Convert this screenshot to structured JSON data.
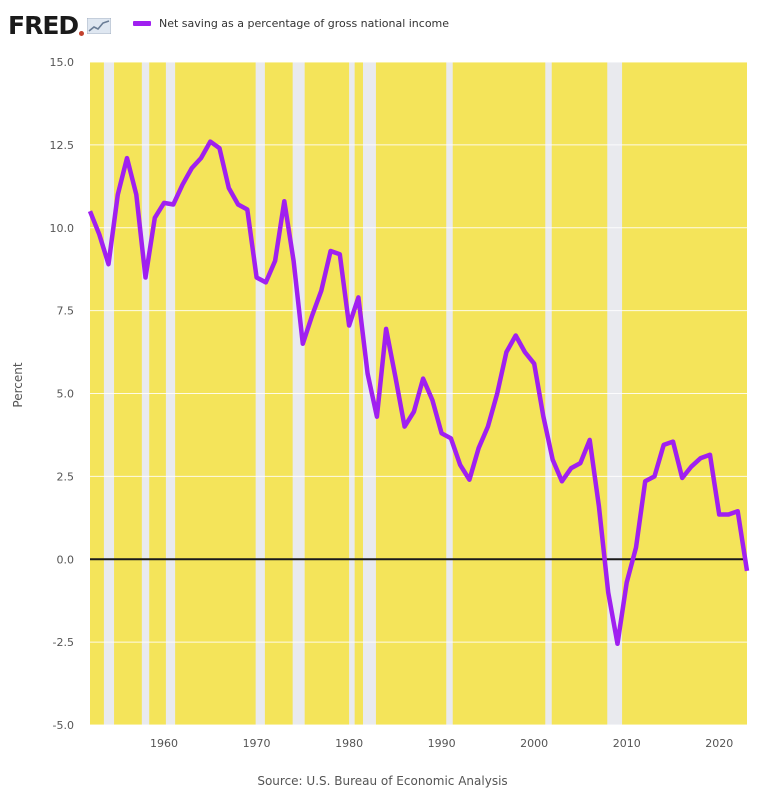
{
  "header": {
    "logo_text": "FRED",
    "legend_label": "Net saving as a percentage of gross national income"
  },
  "colors": {
    "line": "#a020f0",
    "recession_fill": "#f4e45a",
    "zero_line": "#1a1a1a",
    "grid": "#ffffff",
    "logo_accent": "#c2412e"
  },
  "icons": {
    "logo_icon": "fred-sparkline-icon"
  },
  "source_text": "Source: U.S. Bureau of Economic Analysis",
  "chart_data": {
    "type": "line",
    "title": "",
    "xlabel": "",
    "ylabel": "Percent",
    "xlim": [
      1952,
      2023
    ],
    "ylim": [
      -5.0,
      15.0
    ],
    "x_ticks": [
      1960,
      1970,
      1980,
      1990,
      2000,
      2010,
      2020
    ],
    "y_ticks": [
      -5.0,
      -2.5,
      0.0,
      2.5,
      5.0,
      7.5,
      10.0,
      12.5,
      15.0
    ],
    "grid": true,
    "legend_position": "top-left",
    "shaded_bands": [
      [
        1952.0,
        1953.5
      ],
      [
        1954.6,
        1957.6
      ],
      [
        1958.4,
        1960.2
      ],
      [
        1961.2,
        1969.9
      ],
      [
        1970.9,
        1973.9
      ],
      [
        1975.2,
        1980.0
      ],
      [
        1980.6,
        1981.5
      ],
      [
        1982.9,
        1990.5
      ],
      [
        1991.2,
        2001.2
      ],
      [
        2001.9,
        2007.9
      ],
      [
        2009.5,
        2023.0
      ]
    ],
    "series": [
      {
        "name": "Net saving as a percentage of gross national income",
        "x": [
          1952,
          1953,
          1954,
          1955,
          1956,
          1957,
          1958,
          1959,
          1960,
          1961,
          1962,
          1963,
          1964,
          1965,
          1966,
          1967,
          1968,
          1969,
          1970,
          1971,
          1972,
          1973,
          1974,
          1975,
          1976,
          1977,
          1978,
          1979,
          1980,
          1981,
          1982,
          1983,
          1984,
          1985,
          1986,
          1987,
          1988,
          1989,
          1990,
          1991,
          1992,
          1993,
          1994,
          1995,
          1996,
          1997,
          1998,
          1999,
          2000,
          2001,
          2002,
          2003,
          2004,
          2005,
          2006,
          2007,
          2008,
          2009,
          2010,
          2011,
          2012,
          2013,
          2014,
          2015,
          2016,
          2017,
          2018,
          2019,
          2020,
          2021,
          2022,
          2023
        ],
        "values": [
          10.5,
          9.8,
          8.9,
          11.0,
          12.1,
          11.0,
          8.5,
          10.3,
          10.75,
          10.7,
          11.3,
          11.8,
          12.1,
          12.6,
          12.4,
          11.2,
          10.7,
          10.55,
          8.5,
          8.35,
          9.0,
          10.8,
          9.0,
          6.5,
          7.35,
          8.1,
          9.3,
          9.2,
          7.05,
          7.9,
          5.6,
          4.3,
          6.95,
          5.5,
          4.0,
          4.45,
          5.45,
          4.8,
          3.8,
          3.65,
          2.85,
          2.4,
          3.35,
          4.0,
          5.0,
          6.25,
          6.75,
          6.25,
          5.9,
          4.3,
          3.0,
          2.35,
          2.75,
          2.9,
          3.6,
          1.6,
          -1.0,
          -2.55,
          -0.7,
          0.35,
          2.35,
          2.5,
          3.45,
          3.55,
          2.45,
          2.8,
          3.05,
          3.15,
          1.35,
          1.35,
          1.45,
          -0.35
        ]
      }
    ]
  }
}
